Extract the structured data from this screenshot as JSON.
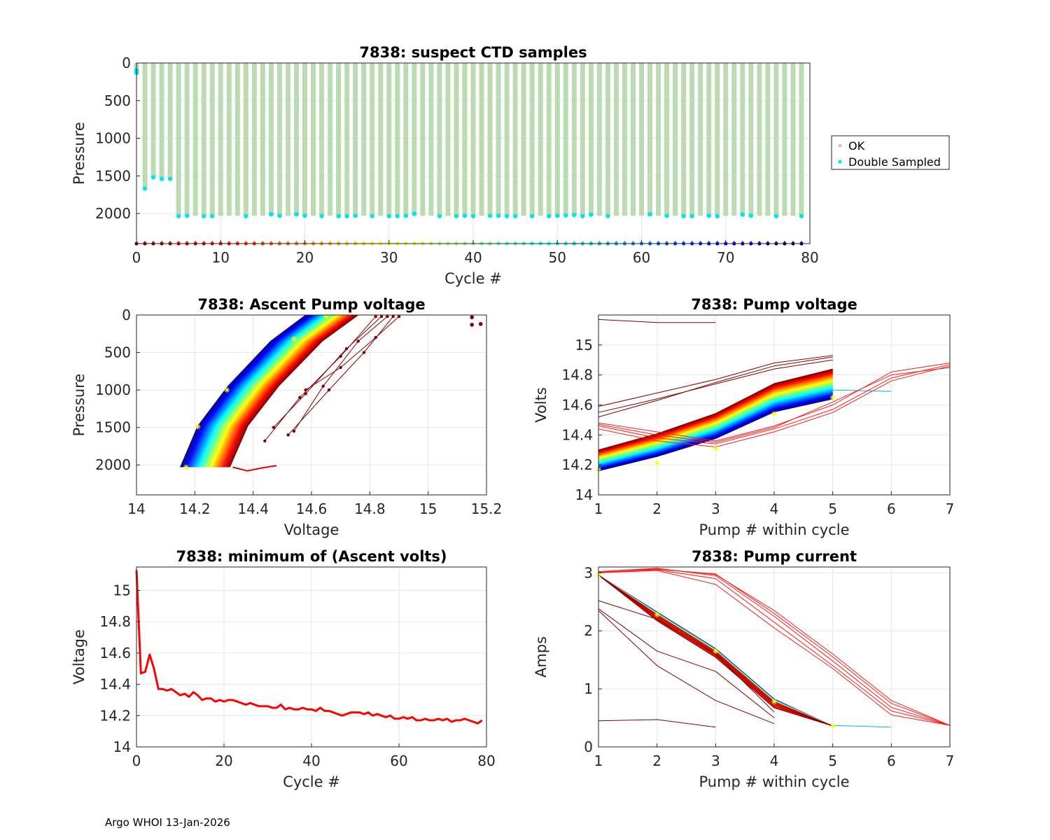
{
  "footer": "Argo WHOI 13-Jan-2026",
  "chart_data": [
    {
      "id": "ctd",
      "type": "scatter",
      "title": "7838: suspect CTD samples",
      "xlabel": "Cycle #",
      "ylabel": "Pressure",
      "xlim": [
        0,
        80
      ],
      "ylim": [
        0,
        2400
      ],
      "y_reversed": true,
      "xticks": [
        0,
        10,
        20,
        30,
        40,
        50,
        60,
        70,
        80
      ],
      "yticks": [
        0,
        500,
        1000,
        1500,
        2000
      ],
      "grid": true,
      "legend": {
        "placement": "right",
        "entries": [
          {
            "label": "OK",
            "color": "#c8c8c8"
          },
          {
            "label": "Double Sampled",
            "color": "#00e5ee"
          }
        ]
      },
      "profile_color": "#bcdbb3",
      "cycles": [
        0,
        1,
        2,
        3,
        4,
        5,
        6,
        7,
        8,
        9,
        10,
        11,
        12,
        13,
        14,
        15,
        16,
        17,
        18,
        19,
        20,
        21,
        22,
        23,
        24,
        25,
        26,
        27,
        28,
        29,
        30,
        31,
        32,
        33,
        34,
        35,
        36,
        37,
        38,
        39,
        40,
        41,
        42,
        43,
        44,
        45,
        46,
        47,
        48,
        49,
        50,
        51,
        52,
        53,
        54,
        55,
        56,
        57,
        58,
        59,
        60,
        61,
        62,
        63,
        64,
        65,
        66,
        67,
        68,
        69,
        70,
        71,
        72,
        73,
        74,
        75,
        76,
        77,
        78,
        79
      ],
      "max_pressure": [
        150,
        1660,
        1510,
        1530,
        1530,
        2030,
        2030,
        2030,
        2030,
        2030,
        2030,
        2030,
        2030,
        2030,
        2030,
        2030,
        2030,
        2030,
        2030,
        2030,
        2030,
        2030,
        2030,
        2030,
        2030,
        2030,
        2030,
        2030,
        2030,
        2030,
        2030,
        2030,
        2030,
        2030,
        2030,
        2030,
        2030,
        2030,
        2030,
        2030,
        2030,
        2030,
        2030,
        2030,
        2030,
        2030,
        2030,
        2030,
        2030,
        2030,
        2030,
        2030,
        2030,
        2030,
        2030,
        2030,
        2030,
        2030,
        2030,
        2030,
        2030,
        2030,
        2030,
        2030,
        2030,
        2030,
        2030,
        2030,
        2030,
        2030,
        2030,
        2030,
        2030,
        2030,
        2030,
        2030,
        2030,
        2030,
        2030,
        2030
      ],
      "double_sampled": [
        [
          0,
          100
        ],
        [
          0,
          130
        ],
        [
          1,
          1670
        ],
        [
          2,
          1520
        ],
        [
          3,
          1540
        ],
        [
          4,
          1540
        ],
        [
          5,
          2035
        ],
        [
          6,
          2030
        ],
        [
          8,
          2035
        ],
        [
          9,
          2035
        ],
        [
          13,
          2035
        ],
        [
          16,
          2010
        ],
        [
          17,
          2030
        ],
        [
          19,
          2010
        ],
        [
          20,
          2030
        ],
        [
          22,
          2035
        ],
        [
          24,
          2035
        ],
        [
          25,
          2035
        ],
        [
          26,
          2030
        ],
        [
          28,
          2035
        ],
        [
          30,
          2035
        ],
        [
          31,
          2035
        ],
        [
          32,
          2030
        ],
        [
          33,
          2005
        ],
        [
          36,
          2035
        ],
        [
          38,
          2035
        ],
        [
          39,
          2030
        ],
        [
          40,
          2035
        ],
        [
          42,
          2030
        ],
        [
          43,
          2030
        ],
        [
          44,
          2035
        ],
        [
          45,
          2035
        ],
        [
          47,
          2035
        ],
        [
          49,
          2035
        ],
        [
          50,
          2030
        ],
        [
          51,
          2025
        ],
        [
          52,
          2020
        ],
        [
          53,
          2035
        ],
        [
          54,
          2015
        ],
        [
          56,
          2035
        ],
        [
          61,
          2010
        ],
        [
          63,
          2030
        ],
        [
          65,
          2035
        ],
        [
          66,
          2035
        ],
        [
          68,
          2030
        ],
        [
          69,
          2035
        ],
        [
          72,
          2015
        ],
        [
          73,
          2030
        ],
        [
          76,
          2035
        ],
        [
          79,
          2035
        ]
      ],
      "cycle_marker_pressure": 2400
    },
    {
      "id": "ascent",
      "type": "line",
      "title": "7838: Ascent Pump voltage",
      "xlabel": "Voltage",
      "ylabel": "Pressure",
      "xlim": [
        14,
        15.2
      ],
      "ylim": [
        0,
        2400
      ],
      "y_reversed": true,
      "xticks": [
        14,
        14.2,
        14.4,
        14.6,
        14.8,
        15,
        15.2
      ],
      "yticks": [
        0,
        500,
        1000,
        1500,
        2000
      ],
      "grid": true,
      "pressure_levels": [
        0,
        350,
        950,
        1480,
        2030
      ],
      "n_cycles": 80,
      "voltage_start": [
        14.93,
        14.88,
        14.78,
        14.77,
        14.76,
        14.75,
        14.74,
        14.73
      ],
      "voltage_end": [
        14.15,
        14.32
      ],
      "early_profiles": [
        {
          "volts": [
            14.88,
            14.78,
            14.66,
            14.52
          ],
          "pres": [
            20,
            500,
            1000,
            1600
          ]
        },
        {
          "volts": [
            14.86,
            14.76,
            14.64,
            14.54
          ],
          "pres": [
            20,
            350,
            950,
            1550
          ]
        },
        {
          "volts": [
            14.84,
            14.72,
            14.58,
            14.47
          ],
          "pres": [
            20,
            450,
            1050,
            1500
          ]
        },
        {
          "volts": [
            14.82,
            14.7,
            14.56,
            14.44
          ],
          "pres": [
            20,
            550,
            1100,
            1680
          ]
        },
        {
          "volts": [
            14.9,
            14.82,
            14.7,
            14.58
          ],
          "pres": [
            20,
            300,
            700,
            1000
          ]
        }
      ],
      "outliers": [
        [
          15.15,
          30
        ],
        [
          15.15,
          130
        ],
        [
          15.18,
          120
        ]
      ],
      "bottom_tail": {
        "volts": [
          14.33,
          14.38,
          14.43,
          14.48
        ],
        "pres": [
          2030,
          2080,
          2040,
          2010
        ]
      }
    },
    {
      "id": "pumpv",
      "type": "line",
      "title": "7838: Pump voltage",
      "xlabel": "Pump # within cycle",
      "ylabel": "Volts",
      "xlim": [
        1,
        7
      ],
      "ylim": [
        14,
        15.2
      ],
      "xticks": [
        1,
        2,
        3,
        4,
        5,
        6,
        7
      ],
      "yticks": [
        14,
        14.2,
        14.4,
        14.6,
        14.8,
        15
      ],
      "grid": true,
      "n_cycles": 80,
      "main_start": [
        14.3,
        14.16
      ],
      "main_end": [
        14.84,
        14.64
      ],
      "early_series": [
        {
          "x": [
            1,
            2,
            3,
            4,
            5,
            6,
            7
          ],
          "y": [
            14.46,
            14.38,
            14.34,
            14.44,
            14.57,
            14.78,
            14.87
          ]
        },
        {
          "x": [
            1,
            2,
            3,
            4,
            5,
            6,
            7
          ],
          "y": [
            14.48,
            14.42,
            14.36,
            14.46,
            14.6,
            14.82,
            14.88
          ]
        },
        {
          "x": [
            1,
            2,
            3,
            4,
            5,
            6,
            7
          ],
          "y": [
            14.44,
            14.36,
            14.32,
            14.42,
            14.55,
            14.76,
            14.86
          ]
        },
        {
          "x": [
            1,
            2,
            3,
            4,
            5,
            6,
            7
          ],
          "y": [
            14.47,
            14.4,
            14.35,
            14.45,
            14.62,
            14.8,
            14.85
          ]
        },
        {
          "x": [
            1,
            2,
            3,
            4,
            5
          ],
          "y": [
            14.59,
            14.68,
            14.77,
            14.88,
            14.93
          ]
        },
        {
          "x": [
            1,
            2,
            3,
            4,
            5
          ],
          "y": [
            14.52,
            14.63,
            14.75,
            14.86,
            14.92
          ]
        },
        {
          "x": [
            1,
            2,
            3,
            4,
            5
          ],
          "y": [
            14.55,
            14.64,
            14.74,
            14.84,
            14.9
          ]
        },
        {
          "x": [
            1,
            2,
            3
          ],
          "y": [
            15.17,
            15.15,
            15.15
          ]
        }
      ],
      "cyan_tail": {
        "x": [
          5,
          6
        ],
        "y": [
          14.7,
          14.69
        ]
      }
    },
    {
      "id": "minv",
      "type": "line",
      "title": "7838: minimum of (Ascent volts)",
      "xlabel": "Cycle #",
      "ylabel": "Voltage",
      "xlim": [
        0,
        80
      ],
      "ylim": [
        14,
        15.15
      ],
      "xticks": [
        0,
        20,
        40,
        60,
        80
      ],
      "yticks": [
        14,
        14.2,
        14.4,
        14.6,
        14.8,
        15
      ],
      "grid": true,
      "line_color": "#ff0000",
      "x": [
        0,
        1,
        2,
        3,
        4,
        5,
        6,
        7,
        8,
        9,
        10,
        11,
        12,
        13,
        14,
        15,
        16,
        17,
        18,
        19,
        20,
        21,
        22,
        23,
        24,
        25,
        26,
        27,
        28,
        29,
        30,
        31,
        32,
        33,
        34,
        35,
        36,
        37,
        38,
        39,
        40,
        41,
        42,
        43,
        44,
        45,
        46,
        47,
        48,
        49,
        50,
        51,
        52,
        53,
        54,
        55,
        56,
        57,
        58,
        59,
        60,
        61,
        62,
        63,
        64,
        65,
        66,
        67,
        68,
        69,
        70,
        71,
        72,
        73,
        74,
        75,
        76,
        77,
        78,
        79
      ],
      "values": [
        15.13,
        14.47,
        14.48,
        14.59,
        14.5,
        14.37,
        14.37,
        14.36,
        14.37,
        14.35,
        14.33,
        14.34,
        14.32,
        14.35,
        14.33,
        14.3,
        14.31,
        14.31,
        14.29,
        14.3,
        14.29,
        14.3,
        14.3,
        14.29,
        14.28,
        14.27,
        14.28,
        14.27,
        14.26,
        14.26,
        14.26,
        14.25,
        14.25,
        14.27,
        14.24,
        14.25,
        14.24,
        14.24,
        14.25,
        14.24,
        14.24,
        14.23,
        14.25,
        14.23,
        14.23,
        14.22,
        14.21,
        14.2,
        14.21,
        14.22,
        14.22,
        14.22,
        14.21,
        14.22,
        14.2,
        14.21,
        14.2,
        14.19,
        14.2,
        14.18,
        14.18,
        14.19,
        14.18,
        14.19,
        14.17,
        14.17,
        14.18,
        14.17,
        14.17,
        14.18,
        14.17,
        14.18,
        14.16,
        14.17,
        14.17,
        14.18,
        14.17,
        14.16,
        14.15,
        14.17
      ]
    },
    {
      "id": "pumpc",
      "type": "line",
      "title": "7838: Pump current",
      "xlabel": "Pump # within cycle",
      "ylabel": "Amps",
      "xlim": [
        1,
        7
      ],
      "ylim": [
        0,
        3.1
      ],
      "xticks": [
        1,
        2,
        3,
        4,
        5,
        6,
        7
      ],
      "yticks": [
        0,
        1,
        2,
        3
      ],
      "grid": true,
      "n_cycles": 80,
      "main_series": {
        "x": [
          1,
          2,
          3,
          4,
          5
        ],
        "y": [
          2.96,
          2.28,
          1.65,
          0.78,
          0.36
        ]
      },
      "early_series": [
        {
          "x": [
            1,
            2,
            3,
            4,
            5,
            6,
            7
          ],
          "y": [
            3.0,
            3.06,
            2.98,
            2.3,
            1.55,
            0.75,
            0.37
          ]
        },
        {
          "x": [
            1,
            2,
            3,
            4,
            5,
            6,
            7
          ],
          "y": [
            3.02,
            3.08,
            2.95,
            2.25,
            1.48,
            0.68,
            0.37
          ]
        },
        {
          "x": [
            1,
            2,
            3,
            4,
            5,
            6,
            7
          ],
          "y": [
            3.01,
            3.05,
            2.9,
            2.15,
            1.4,
            0.62,
            0.37
          ]
        },
        {
          "x": [
            1,
            2,
            3,
            4,
            5,
            6,
            7
          ],
          "y": [
            3.0,
            3.04,
            2.8,
            2.05,
            1.35,
            0.55,
            0.37
          ]
        },
        {
          "x": [
            1,
            2,
            3,
            4,
            5,
            6,
            7
          ],
          "y": [
            3.02,
            3.07,
            2.97,
            2.35,
            1.6,
            0.8,
            0.37
          ]
        },
        {
          "x": [
            1,
            2,
            3,
            4
          ],
          "y": [
            2.52,
            2.2,
            1.6,
            0.6
          ]
        },
        {
          "x": [
            1,
            2,
            3,
            4
          ],
          "y": [
            2.38,
            1.65,
            1.3,
            0.5
          ]
        },
        {
          "x": [
            1,
            2,
            3,
            4
          ],
          "y": [
            2.35,
            1.4,
            0.8,
            0.4
          ]
        },
        {
          "x": [
            1,
            2,
            3
          ],
          "y": [
            0.45,
            0.47,
            0.34
          ]
        }
      ],
      "cyan_tail": {
        "x": [
          5,
          6
        ],
        "y": [
          0.37,
          0.34
        ]
      }
    }
  ]
}
